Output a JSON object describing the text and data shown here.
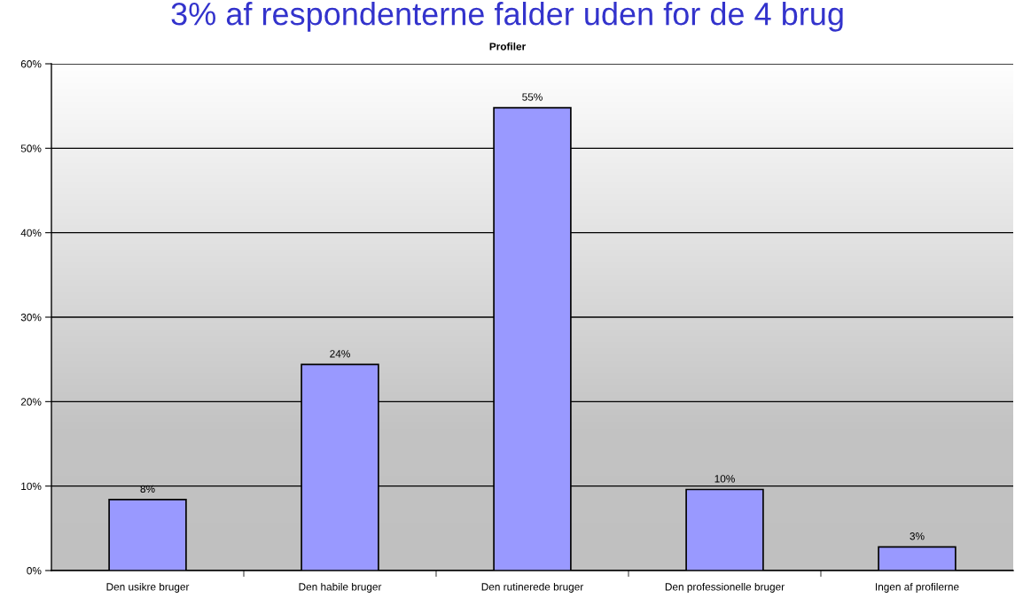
{
  "chart_data": {
    "type": "bar",
    "title": "3% af respondenterne falder uden for de 4 brug",
    "subtitle": "Profiler",
    "categories": [
      "Den usikre bruger",
      "Den habile bruger",
      "Den rutinerede bruger",
      "Den professionelle bruger",
      "Ingen af profilerne"
    ],
    "values": [
      8.4,
      24.4,
      54.8,
      9.6,
      2.8
    ],
    "color": "#9999ff",
    "value_labels": [
      "8%",
      "24%",
      "55%",
      "10%",
      "3%"
    ],
    "ylim": [
      0,
      60
    ],
    "yticks": [
      {
        "value": 0,
        "label": "0%"
      },
      {
        "value": 10,
        "label": "10%"
      },
      {
        "value": 20,
        "label": "20%"
      },
      {
        "value": 30,
        "label": "30%"
      },
      {
        "value": 40,
        "label": "40%"
      },
      {
        "value": 50,
        "label": "50%"
      },
      {
        "value": 60,
        "label": "60%"
      }
    ],
    "grid": "y"
  }
}
